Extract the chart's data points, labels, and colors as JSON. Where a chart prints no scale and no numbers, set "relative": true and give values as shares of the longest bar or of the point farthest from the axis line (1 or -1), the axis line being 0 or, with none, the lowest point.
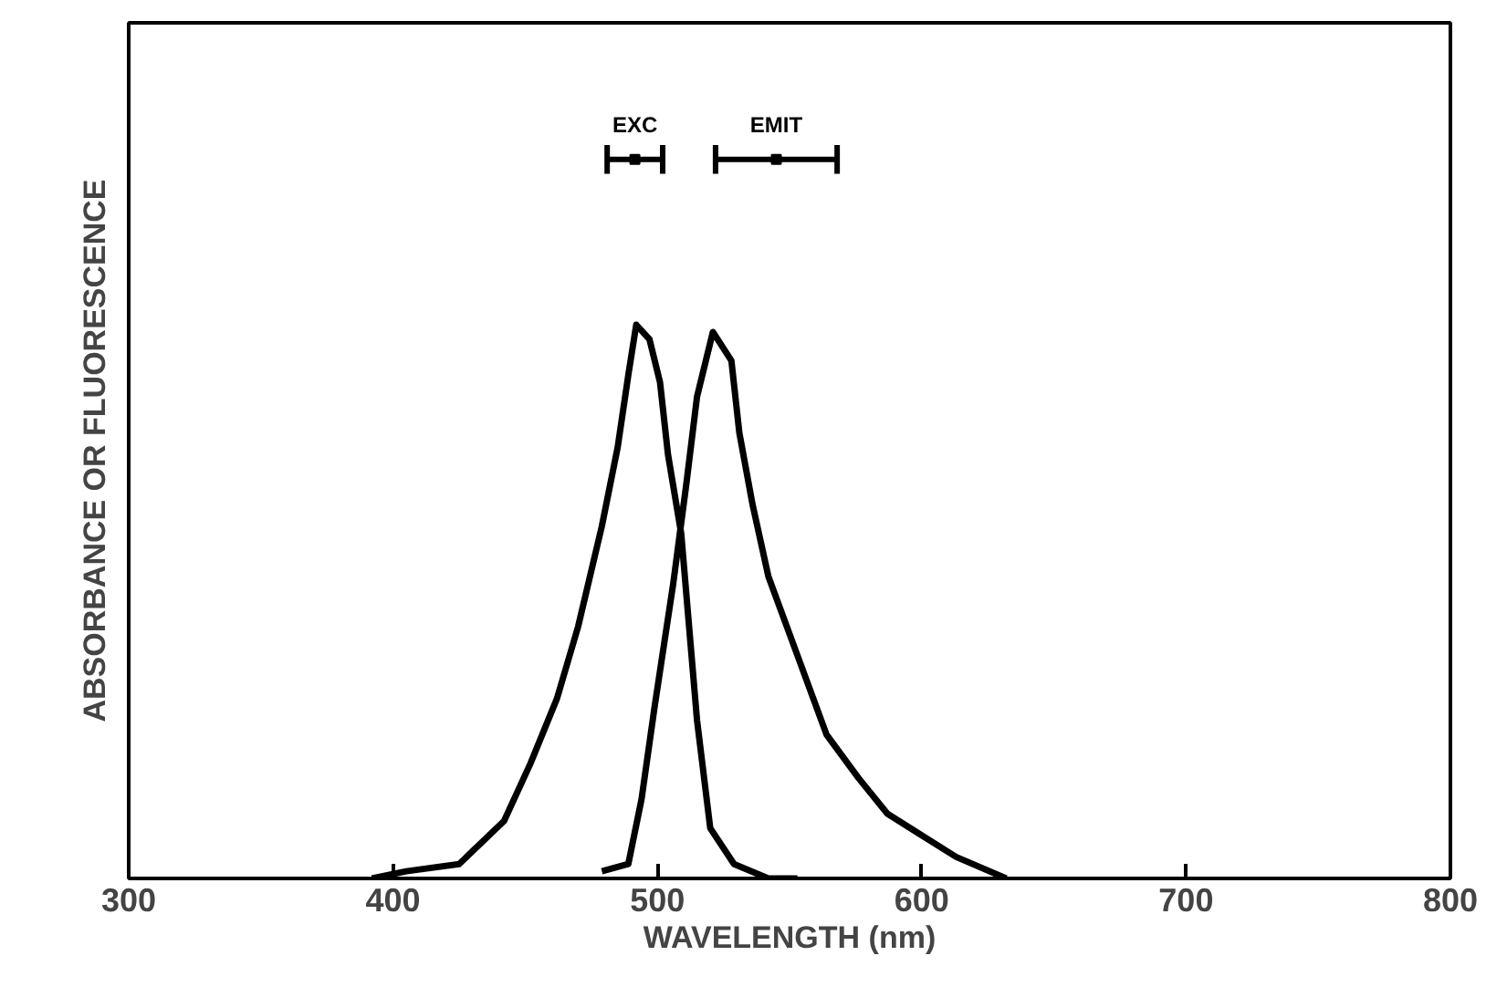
{
  "chart_data": {
    "type": "line",
    "relative": true,
    "xlabel": "WAVELENGTH (nm)",
    "ylabel": "ABSORBANCE OR FLUORESCENCE",
    "xlim": [
      300,
      800
    ],
    "xticks": [
      300,
      400,
      500,
      600,
      700,
      800
    ],
    "grid": false,
    "marker": "none",
    "line_style": "solid",
    "series": [
      {
        "color": "#000000",
        "x": [
          392,
          405,
          425,
          442,
          452,
          462,
          470,
          479,
          485,
          489,
          492,
          497,
          501,
          504,
          509,
          512,
          515,
          520,
          529,
          542,
          553
        ],
        "values": [
          0,
          0.01,
          0.02,
          0.08,
          0.16,
          0.25,
          0.35,
          0.49,
          0.6,
          0.7,
          0.77,
          0.75,
          0.69,
          0.59,
          0.48,
          0.35,
          0.22,
          0.07,
          0.02,
          0,
          0
        ]
      },
      {
        "color": "#000000",
        "x": [
          479,
          489,
          494,
          499,
          506,
          511,
          515,
          521,
          528,
          531,
          536,
          542,
          553,
          564,
          576,
          587,
          600,
          613,
          632
        ],
        "values": [
          0.01,
          0.02,
          0.11,
          0.24,
          0.41,
          0.55,
          0.67,
          0.76,
          0.72,
          0.62,
          0.52,
          0.42,
          0.31,
          0.2,
          0.14,
          0.09,
          0.06,
          0.03,
          0
        ]
      },
      {
        "type": "scatter",
        "name": "EXC",
        "color": "#000000",
        "marker": "square",
        "x": [
          491.5
        ],
        "values": [
          1
        ],
        "xerrors": [
          [
            481,
            502
          ]
        ]
      },
      {
        "type": "scatter",
        "name": "EMIT",
        "color": "#000000",
        "marker": "square",
        "x": [
          545
        ],
        "values": [
          1
        ],
        "xerrors": [
          [
            522,
            568
          ]
        ]
      }
    ]
  }
}
